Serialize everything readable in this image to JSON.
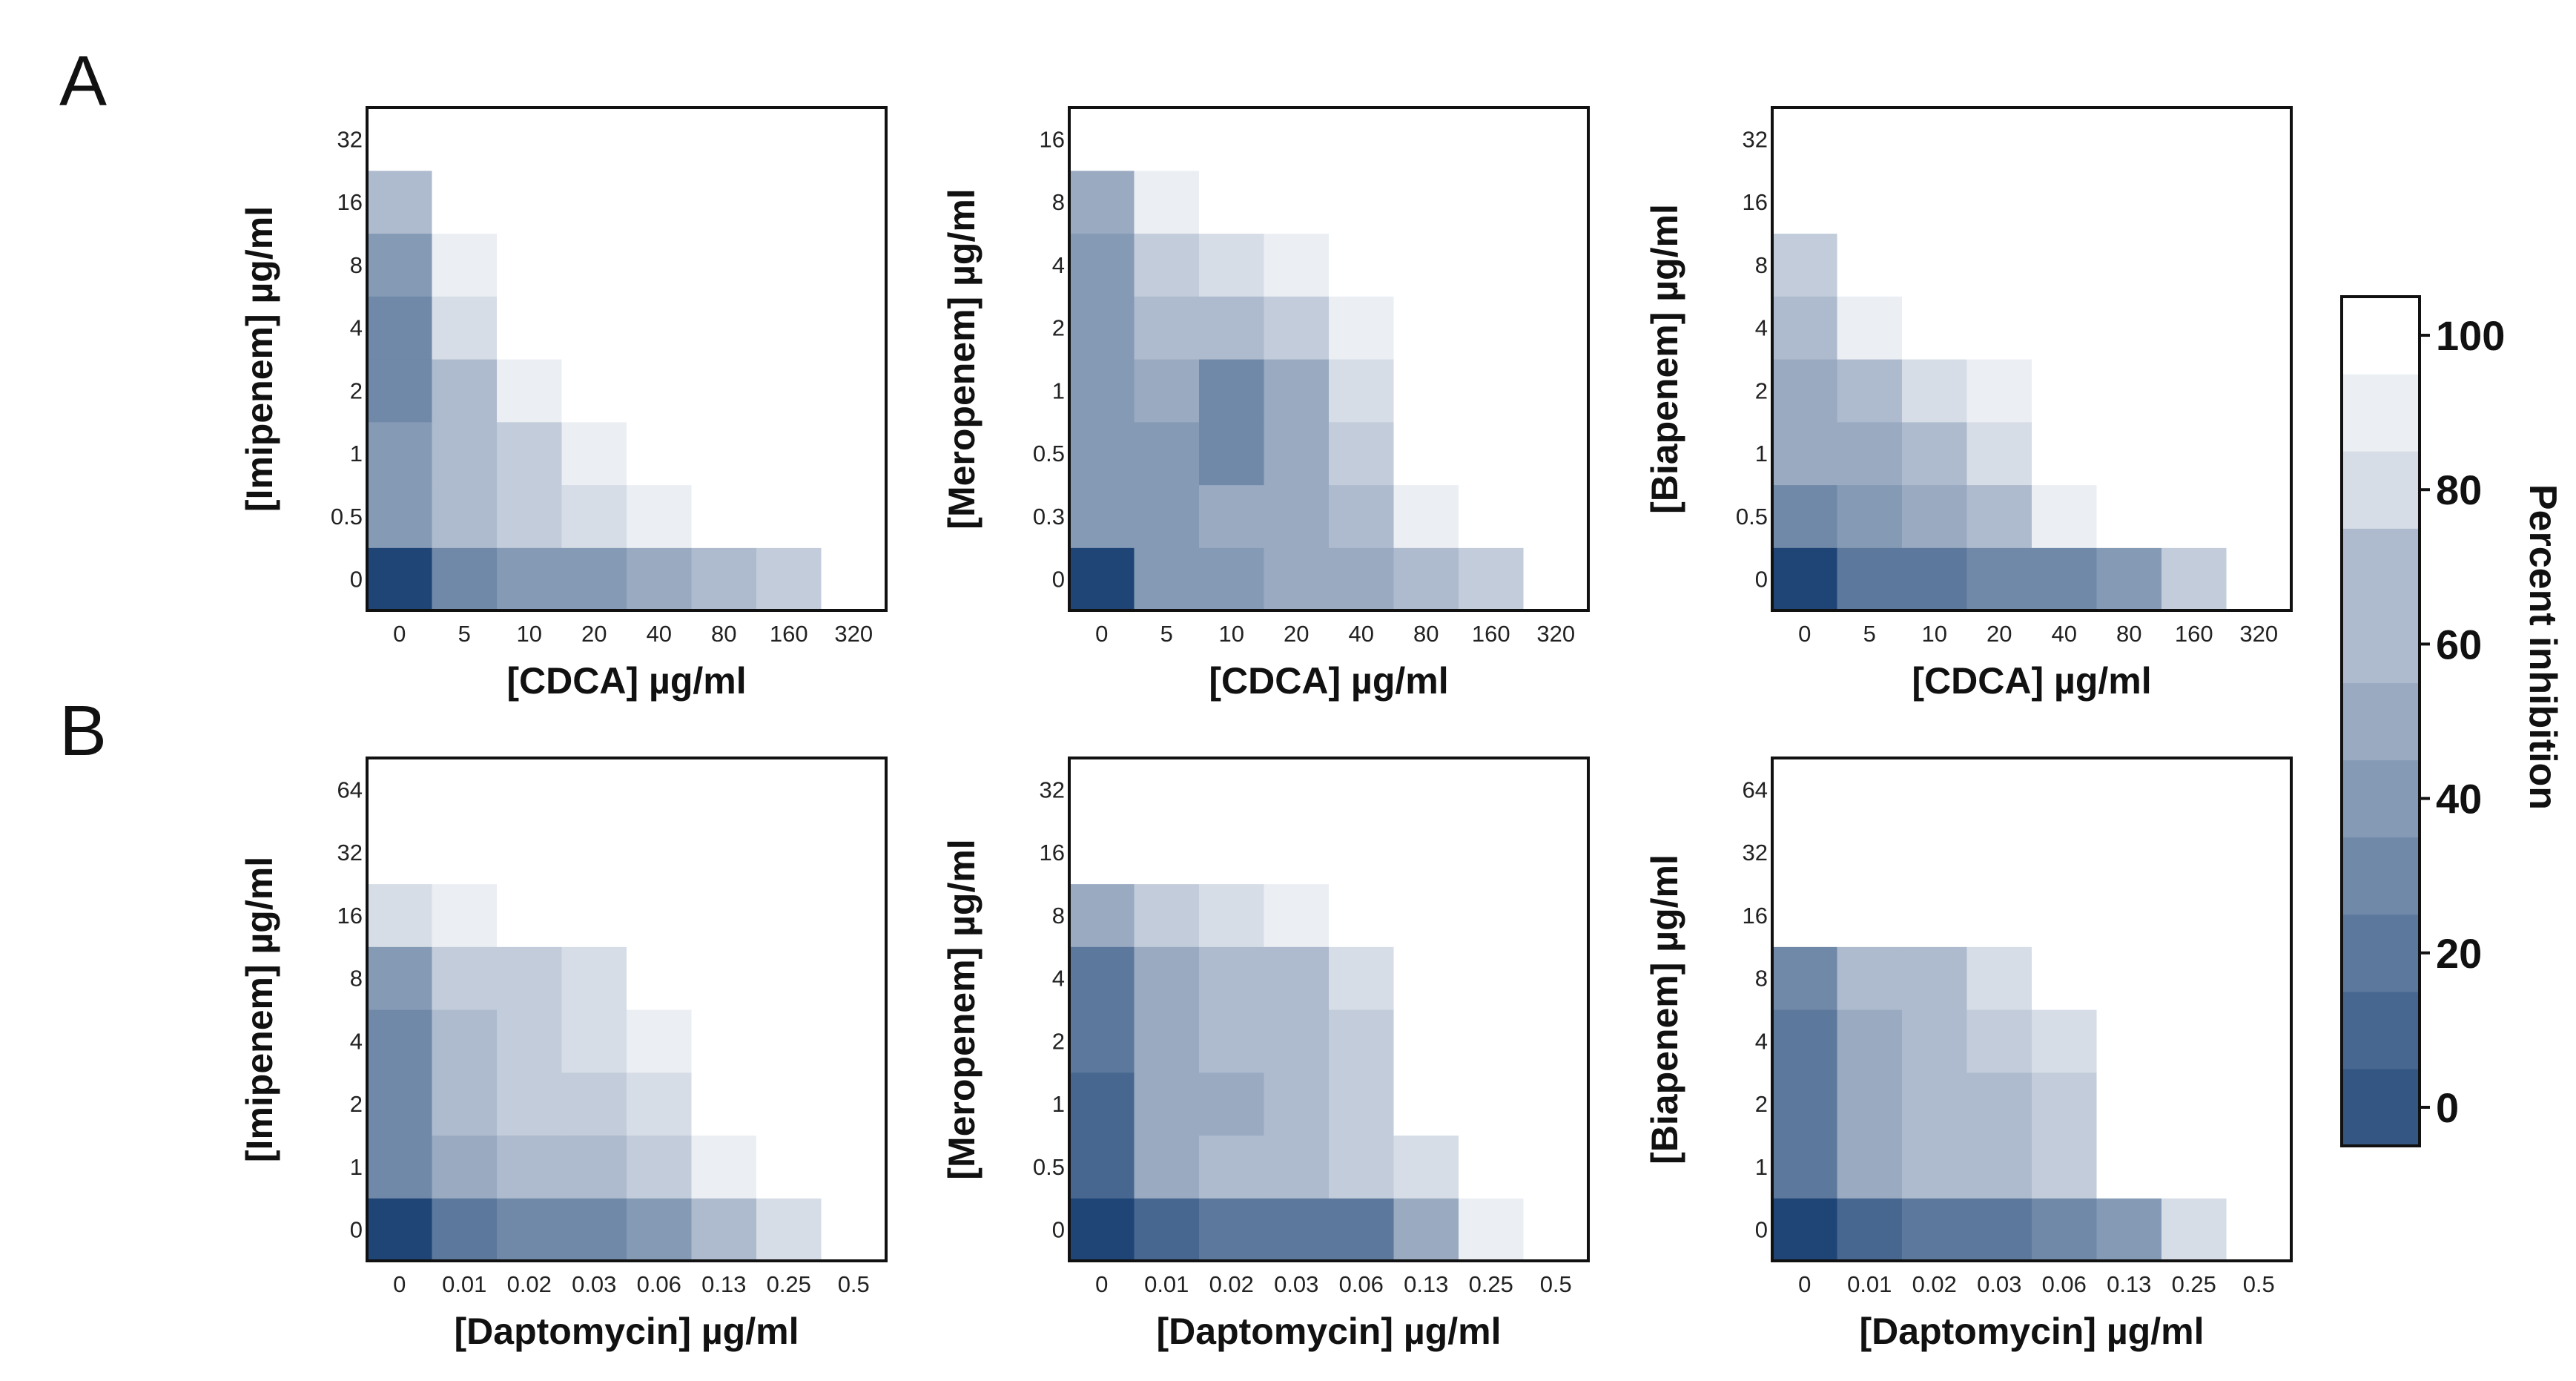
{
  "panel_letters": [
    "A",
    "B"
  ],
  "colorbar": {
    "title": "Percent inhibition",
    "ticks": [
      "0",
      "20",
      "40",
      "60",
      "80",
      "100"
    ],
    "tick_values": [
      0,
      20,
      40,
      60,
      80,
      100
    ],
    "range": [
      -5,
      105
    ],
    "low_color": "#1f4577",
    "high_color": "#ffffff"
  },
  "chart_data": [
    {
      "type": "heatmap",
      "id": "A1",
      "xlabel": "[CDCA] µg/ml",
      "ylabel": "[Imipenem] µg/ml",
      "x": [
        "0",
        "5",
        "10",
        "20",
        "40",
        "80",
        "160",
        "320"
      ],
      "y": [
        "0",
        "0.5",
        "1",
        "2",
        "4",
        "8",
        "16",
        "32"
      ],
      "values": [
        [
          0,
          38,
          47,
          48,
          50,
          60,
          70,
          100
        ],
        [
          44,
          66,
          70,
          78,
          95,
          100,
          100,
          100
        ],
        [
          42,
          64,
          73,
          90,
          100,
          100,
          100,
          100
        ],
        [
          40,
          62,
          88,
          99,
          100,
          100,
          100,
          100
        ],
        [
          40,
          78,
          97,
          100,
          100,
          100,
          100,
          100
        ],
        [
          47,
          90,
          100,
          100,
          100,
          100,
          100,
          100
        ],
        [
          60,
          99,
          100,
          100,
          100,
          100,
          100,
          100
        ],
        [
          98,
          100,
          100,
          100,
          100,
          100,
          100,
          100
        ]
      ]
    },
    {
      "type": "heatmap",
      "id": "A2",
      "xlabel": "[CDCA] µg/ml",
      "ylabel": "[Meropenem] µg/ml",
      "x": [
        "0",
        "5",
        "10",
        "20",
        "40",
        "80",
        "160",
        "320"
      ],
      "y": [
        "0",
        "0.3",
        "0.5",
        "1",
        "2",
        "4",
        "8",
        "16"
      ],
      "values": [
        [
          0,
          45,
          48,
          53,
          55,
          60,
          72,
          100
        ],
        [
          42,
          48,
          50,
          55,
          68,
          90,
          100,
          100
        ],
        [
          45,
          45,
          35,
          50,
          75,
          97,
          100,
          100
        ],
        [
          45,
          52,
          35,
          52,
          80,
          100,
          100,
          100
        ],
        [
          48,
          62,
          65,
          74,
          92,
          100,
          100,
          100
        ],
        [
          48,
          72,
          84,
          94,
          100,
          100,
          100,
          100
        ],
        [
          52,
          88,
          100,
          100,
          100,
          100,
          100,
          100
        ],
        [
          98,
          100,
          100,
          100,
          100,
          100,
          100,
          100
        ]
      ]
    },
    {
      "type": "heatmap",
      "id": "A3",
      "xlabel": "[CDCA] µg/ml",
      "ylabel": "[Biapenem] µg/ml",
      "x": [
        "0",
        "5",
        "10",
        "20",
        "40",
        "80",
        "160",
        "320"
      ],
      "y": [
        "0",
        "0.5",
        "1",
        "2",
        "4",
        "8",
        "16",
        "32"
      ],
      "values": [
        [
          0,
          30,
          28,
          35,
          38,
          45,
          75,
          100
        ],
        [
          40,
          45,
          50,
          60,
          88,
          100,
          100,
          100
        ],
        [
          52,
          57,
          65,
          82,
          97,
          97,
          96,
          96
        ],
        [
          52,
          65,
          80,
          95,
          100,
          99,
          97,
          96
        ],
        [
          62,
          88,
          97,
          100,
          100,
          100,
          100,
          100
        ],
        [
          75,
          100,
          100,
          100,
          100,
          100,
          100,
          100
        ],
        [
          100,
          100,
          100,
          100,
          100,
          100,
          100,
          100
        ],
        [
          100,
          100,
          100,
          100,
          100,
          100,
          100,
          100
        ]
      ]
    },
    {
      "type": "heatmap",
      "id": "B1",
      "xlabel": "[Daptomycin] µg/ml",
      "ylabel": "[Imipenem] µg/ml",
      "x": [
        "0",
        "0.01",
        "0.02",
        "0.03",
        "0.06",
        "0.13",
        "0.25",
        "0.5"
      ],
      "y": [
        "0",
        "1",
        "2",
        "4",
        "8",
        "16",
        "32",
        "64"
      ],
      "values": [
        [
          0,
          30,
          38,
          40,
          42,
          60,
          80,
          100
        ],
        [
          38,
          58,
          65,
          68,
          72,
          95,
          100,
          100
        ],
        [
          35,
          62,
          70,
          72,
          80,
          100,
          100,
          100
        ],
        [
          40,
          65,
          75,
          78,
          92,
          100,
          100,
          100
        ],
        [
          45,
          70,
          75,
          82,
          96,
          100,
          100,
          100
        ],
        [
          80,
          95,
          98,
          100,
          100,
          100,
          100,
          100
        ],
        [
          100,
          100,
          100,
          100,
          100,
          100,
          100,
          100
        ],
        [
          100,
          100,
          100,
          100,
          100,
          100,
          100,
          100
        ]
      ]
    },
    {
      "type": "heatmap",
      "id": "B2",
      "xlabel": "[Daptomycin] µg/ml",
      "ylabel": "[Meropenem] µg/ml",
      "x": [
        "0",
        "0.01",
        "0.02",
        "0.03",
        "0.06",
        "0.13",
        "0.25",
        "0.5"
      ],
      "y": [
        "0",
        "0.5",
        "1",
        "2",
        "4",
        "8",
        "16",
        "32"
      ],
      "values": [
        [
          0,
          22,
          25,
          28,
          30,
          50,
          88,
          100
        ],
        [
          22,
          55,
          60,
          65,
          72,
          80,
          100,
          100
        ],
        [
          22,
          50,
          58,
          62,
          72,
          100,
          100,
          100
        ],
        [
          25,
          50,
          60,
          65,
          75,
          100,
          100,
          100
        ],
        [
          25,
          50,
          62,
          68,
          86,
          100,
          100,
          100
        ],
        [
          58,
          74,
          84,
          93,
          100,
          100,
          100,
          100
        ],
        [
          100,
          100,
          100,
          100,
          100,
          100,
          100,
          100
        ],
        [
          100,
          100,
          100,
          100,
          100,
          100,
          100,
          100
        ]
      ]
    },
    {
      "type": "heatmap",
      "id": "B3",
      "xlabel": "[Daptomycin] µg/ml",
      "ylabel": "[Biapenem] µg/ml",
      "x": [
        "0",
        "0.01",
        "0.02",
        "0.03",
        "0.06",
        "0.13",
        "0.25",
        "0.5"
      ],
      "y": [
        "0",
        "1",
        "2",
        "4",
        "8",
        "16",
        "32",
        "64"
      ],
      "values": [
        [
          0,
          22,
          25,
          28,
          32,
          45,
          80,
          100
        ],
        [
          30,
          55,
          60,
          65,
          70,
          100,
          100,
          100
        ],
        [
          28,
          55,
          62,
          68,
          72,
          100,
          100,
          100
        ],
        [
          30,
          58,
          65,
          72,
          80,
          100,
          100,
          100
        ],
        [
          35,
          60,
          68,
          78,
          98,
          100,
          100,
          100
        ],
        [
          100,
          100,
          100,
          100,
          100,
          100,
          100,
          100
        ],
        [
          100,
          100,
          100,
          100,
          100,
          100,
          100,
          100
        ],
        [
          100,
          100,
          100,
          100,
          100,
          100,
          100,
          100
        ]
      ]
    }
  ]
}
